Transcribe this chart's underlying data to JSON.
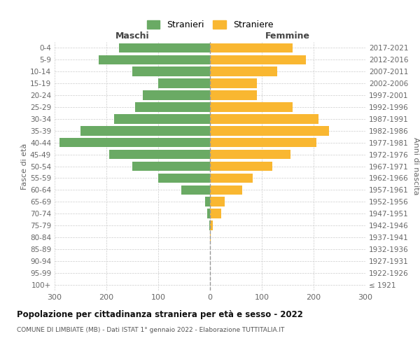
{
  "age_groups": [
    "100+",
    "95-99",
    "90-94",
    "85-89",
    "80-84",
    "75-79",
    "70-74",
    "65-69",
    "60-64",
    "55-59",
    "50-54",
    "45-49",
    "40-44",
    "35-39",
    "30-34",
    "25-29",
    "20-24",
    "15-19",
    "10-14",
    "5-9",
    "0-4"
  ],
  "birth_years": [
    "≤ 1921",
    "1922-1926",
    "1927-1931",
    "1932-1936",
    "1937-1941",
    "1942-1946",
    "1947-1951",
    "1952-1956",
    "1957-1961",
    "1962-1966",
    "1967-1971",
    "1972-1976",
    "1977-1981",
    "1982-1986",
    "1987-1991",
    "1992-1996",
    "1997-2001",
    "2002-2006",
    "2007-2011",
    "2012-2016",
    "2017-2021"
  ],
  "males": [
    0,
    0,
    0,
    0,
    0,
    2,
    5,
    10,
    55,
    100,
    150,
    195,
    290,
    250,
    185,
    145,
    130,
    100,
    150,
    215,
    175
  ],
  "females": [
    0,
    0,
    0,
    0,
    2,
    5,
    22,
    28,
    62,
    82,
    120,
    155,
    205,
    230,
    210,
    160,
    90,
    90,
    130,
    185,
    160
  ],
  "male_color": "#6aaa64",
  "female_color": "#f9b731",
  "male_label": "Stranieri",
  "female_label": "Straniere",
  "xlim": 300,
  "xticks": [
    -300,
    -200,
    -100,
    0,
    100,
    200,
    300
  ],
  "title": "Popolazione per cittadinanza straniera per età e sesso - 2022",
  "subtitle": "COMUNE DI LIMBIATE (MB) - Dati ISTAT 1° gennaio 2022 - Elaborazione TUTTITALIA.IT",
  "xlabel_left": "Maschi",
  "xlabel_right": "Femmine",
  "ylabel_left": "Fasce di età",
  "ylabel_right": "Anni di nascita",
  "background_color": "#ffffff",
  "grid_color": "#cccccc",
  "bar_height": 0.8
}
